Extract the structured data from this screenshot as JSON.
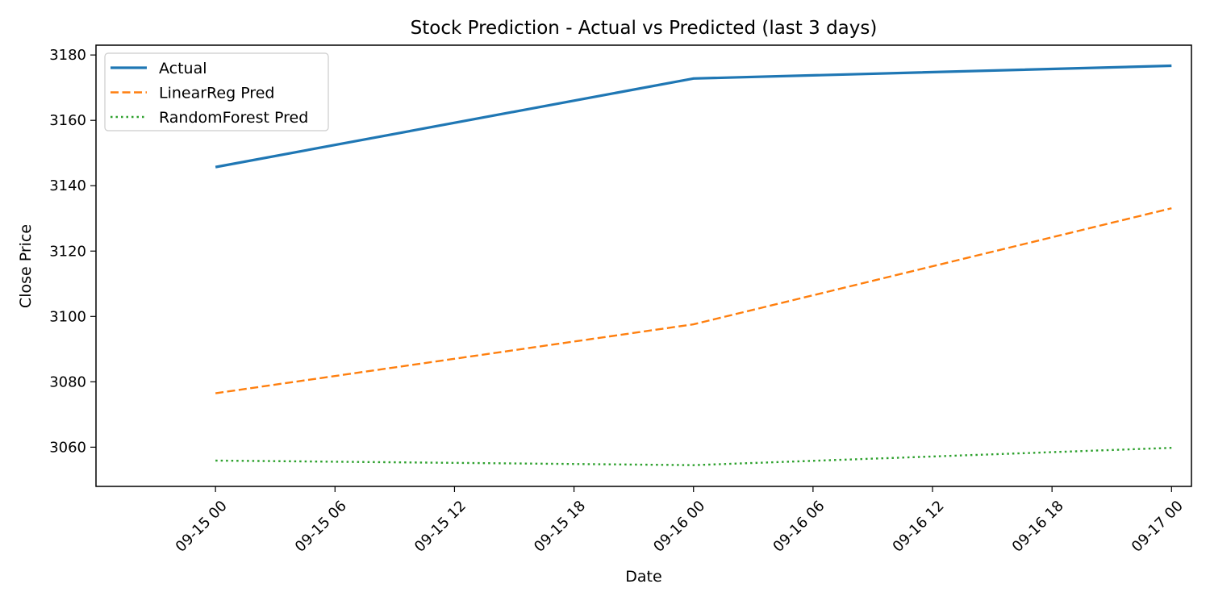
{
  "chart_data": {
    "type": "line",
    "title": "Stock Prediction - Actual vs Predicted (last 3 days)",
    "xlabel": "Date",
    "ylabel": "Close Price",
    "x": [
      "2020-09-15",
      "2020-09-16",
      "2020-09-17"
    ],
    "xlim": [
      "2020-09-14T18:00",
      "2020-09-17T01:00"
    ],
    "ylim": [
      3048,
      3183
    ],
    "x_ticks": [
      {
        "value": "2020-09-15T00:00",
        "label": "09-15 00"
      },
      {
        "value": "2020-09-15T06:00",
        "label": "09-15 06"
      },
      {
        "value": "2020-09-15T12:00",
        "label": "09-15 12"
      },
      {
        "value": "2020-09-15T18:00",
        "label": "09-15 18"
      },
      {
        "value": "2020-09-16T00:00",
        "label": "09-16 00"
      },
      {
        "value": "2020-09-16T06:00",
        "label": "09-16 06"
      },
      {
        "value": "2020-09-16T12:00",
        "label": "09-16 12"
      },
      {
        "value": "2020-09-16T18:00",
        "label": "09-16 18"
      },
      {
        "value": "2020-09-17T00:00",
        "label": "09-17 00"
      }
    ],
    "y_ticks": [
      {
        "value": 3060,
        "label": "3060"
      },
      {
        "value": 3080,
        "label": "3080"
      },
      {
        "value": 3100,
        "label": "3100"
      },
      {
        "value": 3120,
        "label": "3120"
      },
      {
        "value": 3140,
        "label": "3140"
      },
      {
        "value": 3160,
        "label": "3160"
      },
      {
        "value": 3180,
        "label": "3180"
      }
    ],
    "x_tick_rotation": 45,
    "grid": false,
    "legend_position": "upper-left",
    "series": [
      {
        "name": "Actual",
        "values": [
          3145.7,
          3172.8,
          3176.7
        ],
        "color": "#1f77b4",
        "line_style": "solid"
      },
      {
        "name": "LinearReg Pred",
        "values": [
          3076.5,
          3097.6,
          3133.1
        ],
        "color": "#ff7f0e",
        "line_style": "dashed"
      },
      {
        "name": "RandomForest Pred",
        "values": [
          3055.9,
          3054.5,
          3059.8
        ],
        "color": "#2ca02c",
        "line_style": "dotted"
      }
    ]
  }
}
